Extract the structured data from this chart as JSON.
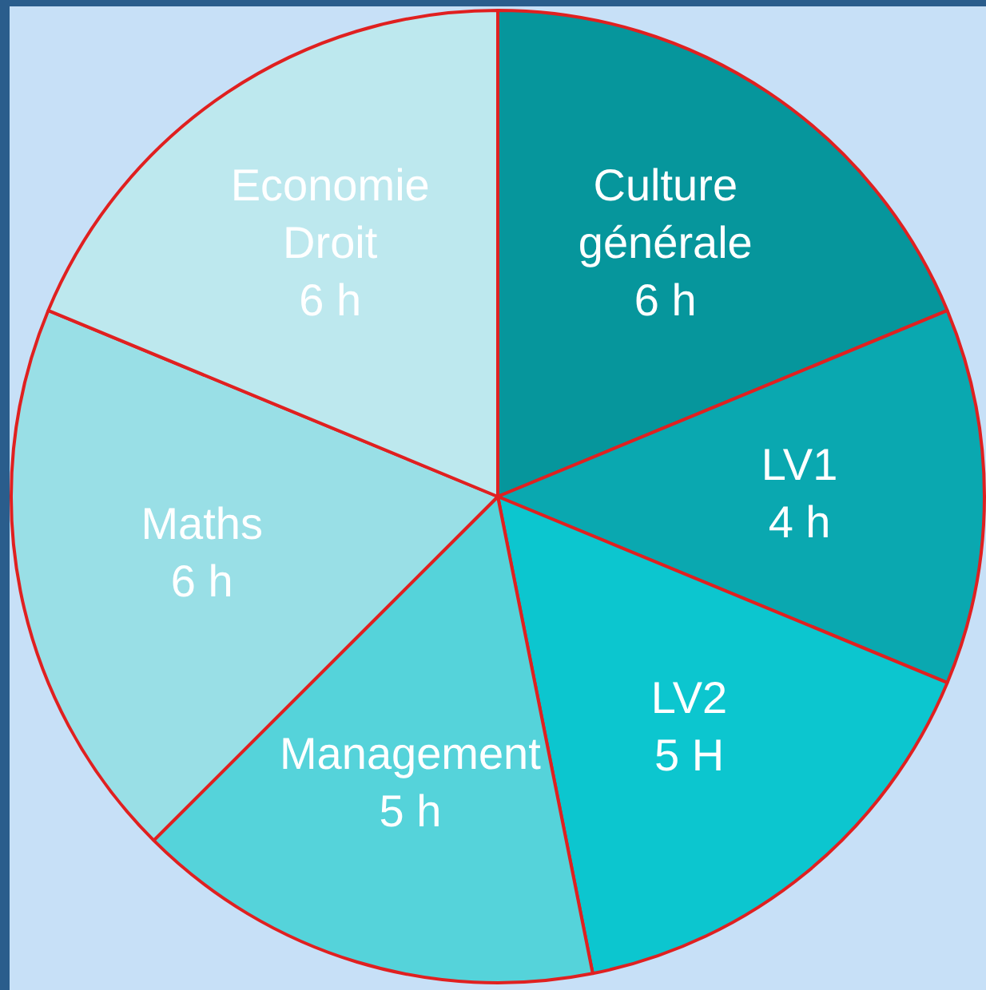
{
  "chart_data": {
    "type": "pie",
    "categories": [
      "Culture générale",
      "LV1",
      "LV2",
      "Management",
      "Maths",
      "Economie Droit"
    ],
    "values": [
      6,
      4,
      5,
      5,
      6,
      6
    ],
    "value_labels": [
      "6 h",
      "4 h",
      "5 H",
      "5 h",
      "6 h",
      "6 h"
    ],
    "colors": [
      "#06969c",
      "#0aa8b0",
      "#0cc6cf",
      "#55d3da",
      "#99dfe6",
      "#bde8ee"
    ],
    "legend": false
  }
}
